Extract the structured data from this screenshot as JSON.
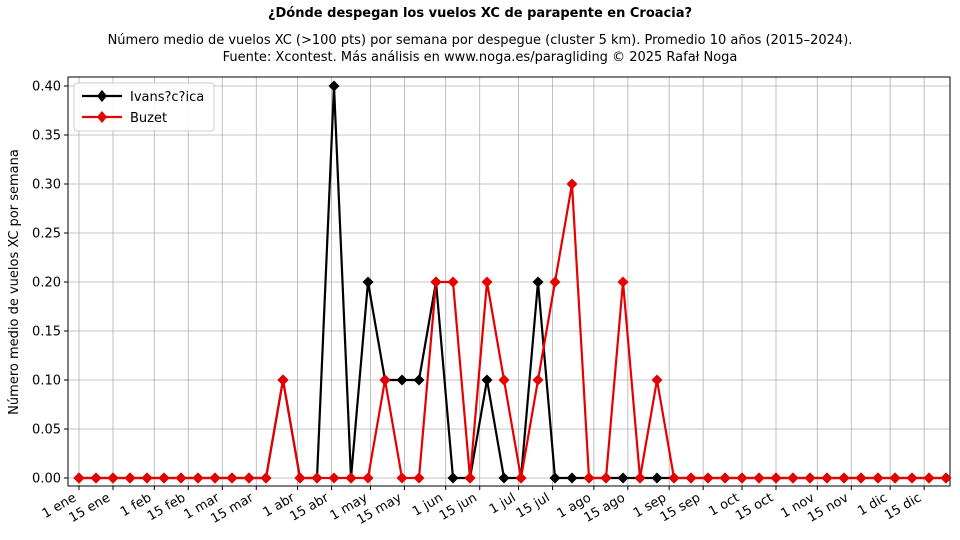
{
  "chart_data": {
    "type": "line",
    "title": "¿Dónde despegan los vuelos XC de parapente en Croacia?",
    "subtitle_lines": [
      "Número medio de vuelos XC (>100 pts) por semana por despegue (cluster 5 km). Promedio 10 años (2015–2024).",
      "Fuente: Xcontest. Más análisis en www.noga.es/paragliding © 2025 Rafał Noga"
    ],
    "xlabel": "",
    "ylabel": "Número medio de vuelos XC por semana",
    "ylim": [
      0,
      0.4
    ],
    "yticks": [
      "0.00",
      "0.05",
      "0.10",
      "0.15",
      "0.20",
      "0.25",
      "0.30",
      "0.35",
      "0.40"
    ],
    "xtick_labels": [
      "1 ene",
      "15 ene",
      "1 feb",
      "15 feb",
      "1 mar",
      "15 mar",
      "1 abr",
      "15 abr",
      "1 may",
      "15 may",
      "1 jun",
      "15 jun",
      "1 jul",
      "15 jul",
      "1 ago",
      "15 ago",
      "1 sep",
      "15 sep",
      "1 oct",
      "15 oct",
      "1 nov",
      "15 nov",
      "1 dic",
      "15 dic"
    ],
    "grid": true,
    "legend_position": "top-left",
    "x_weeks": [
      1,
      2,
      3,
      4,
      5,
      6,
      7,
      8,
      9,
      10,
      11,
      12,
      13,
      14,
      15,
      16,
      17,
      18,
      19,
      20,
      21,
      22,
      23,
      24,
      25,
      26,
      27,
      28,
      29,
      30,
      31,
      32,
      33,
      34,
      35,
      36,
      37,
      38,
      39,
      40,
      41,
      42,
      43,
      44,
      45,
      46,
      47,
      48,
      49,
      50,
      51,
      52
    ],
    "series": [
      {
        "name": "Ivans?c?ica",
        "color": "#000000",
        "values": [
          0,
          0,
          0,
          0,
          0,
          0,
          0,
          0,
          0,
          0,
          0,
          0,
          0.1,
          0,
          0,
          0.4,
          0,
          0.2,
          0.1,
          0.1,
          0.1,
          0.2,
          0,
          0,
          0.1,
          0,
          0,
          0.2,
          0,
          0,
          0,
          0,
          0,
          0,
          0,
          0,
          0,
          0,
          0,
          0,
          0,
          0,
          0,
          0,
          0,
          0,
          0,
          0,
          0,
          0,
          0,
          0
        ]
      },
      {
        "name": "Buzet",
        "color": "#e60000",
        "values": [
          0,
          0,
          0,
          0,
          0,
          0,
          0,
          0,
          0,
          0,
          0,
          0,
          0.1,
          0,
          0,
          0,
          0,
          0,
          0.1,
          0,
          0,
          0.2,
          0.2,
          0,
          0.2,
          0.1,
          0,
          0.1,
          0.2,
          0.3,
          0,
          0,
          0.2,
          0,
          0.1,
          0,
          0,
          0,
          0,
          0,
          0,
          0,
          0,
          0,
          0,
          0,
          0,
          0,
          0,
          0,
          0,
          0
        ]
      }
    ]
  }
}
